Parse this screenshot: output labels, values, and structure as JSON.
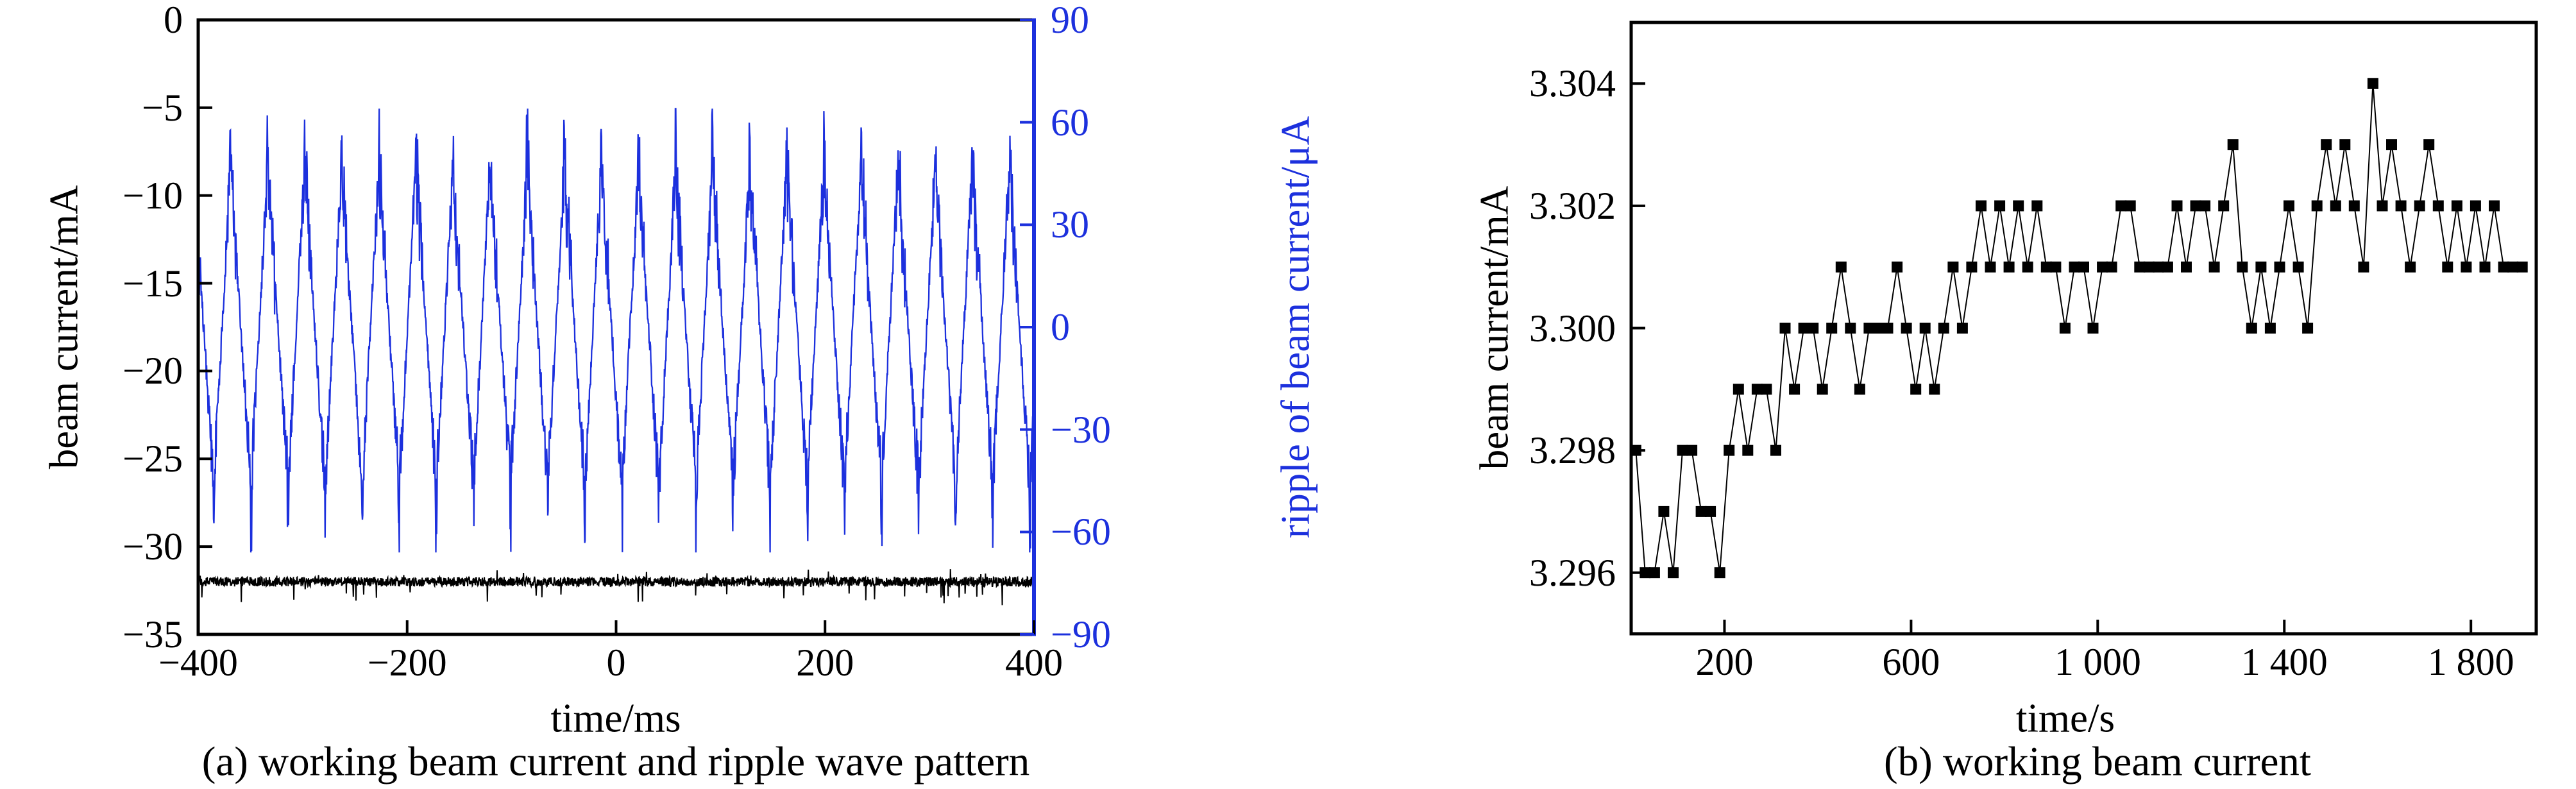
{
  "page": {
    "background": "#ffffff",
    "accent_blue": "#1c30dd",
    "black": "#000000"
  },
  "chart_data": [
    {
      "id": "a",
      "type": "line",
      "caption": "(a) working beam current and ripple wave pattern",
      "xlabel": "time/ms",
      "ylabel_left": "beam current/mA",
      "ylabel_right": "ripple of beam current/μA",
      "xlim": [
        -400,
        400
      ],
      "ylim_left": [
        -35,
        0
      ],
      "ylim_right": [
        -90,
        90
      ],
      "x_ticks": [
        -400,
        -200,
        0,
        200,
        400
      ],
      "x_tick_labels": [
        "−400",
        "−200",
        "0",
        "200",
        "400"
      ],
      "y_ticks_left": [
        0,
        -5,
        -10,
        -15,
        -20,
        -25,
        -30,
        -35
      ],
      "y_tick_labels_left": [
        "0",
        "−5",
        "−10",
        "−15",
        "−20",
        "−25",
        "−30",
        "−35"
      ],
      "y_ticks_right": [
        90,
        60,
        30,
        0,
        -30,
        -60,
        -90
      ],
      "y_tick_labels_right": [
        "90",
        "60",
        "30",
        "0",
        "−30",
        "−60",
        "−90"
      ],
      "grid": false,
      "series": [
        {
          "name": "ripple of beam current",
          "axis": "right",
          "color": "#1c30dd",
          "shape": "periodic noisy triangle wave",
          "period_ms": 35.5,
          "peak_uA": 55,
          "trough_uA": -55,
          "spike_uA": 14,
          "noise_uA": 6
        },
        {
          "name": "working beam current",
          "axis": "left",
          "color": "#000000",
          "shape": "flat noisy band",
          "level_mA": -32,
          "noise_mA": 0.3,
          "down_spike_mA": -1.1
        }
      ]
    },
    {
      "id": "b",
      "type": "scatter",
      "caption": "(b) working beam current",
      "xlabel": "time/s",
      "ylabel": "beam current/mA",
      "xlim": [
        0,
        1940
      ],
      "ylim": [
        3.295,
        3.305
      ],
      "x_ticks": [
        200,
        600,
        1000,
        1400,
        1800
      ],
      "x_tick_labels": [
        "200",
        "600",
        "1 000",
        "1 400",
        "1 800"
      ],
      "y_ticks": [
        3.296,
        3.298,
        3.3,
        3.302,
        3.304
      ],
      "y_tick_labels": [
        "3.296",
        "3.298",
        "3.300",
        "3.302",
        "3.304"
      ],
      "grid": false,
      "marker": "square",
      "color": "#000000",
      "samples": [
        [
          10,
          3.298
        ],
        [
          30,
          3.296
        ],
        [
          50,
          3.296
        ],
        [
          70,
          3.297
        ],
        [
          90,
          3.296
        ],
        [
          110,
          3.298
        ],
        [
          130,
          3.298
        ],
        [
          150,
          3.297
        ],
        [
          170,
          3.297
        ],
        [
          190,
          3.296
        ],
        [
          210,
          3.298
        ],
        [
          230,
          3.299
        ],
        [
          250,
          3.298
        ],
        [
          270,
          3.299
        ],
        [
          290,
          3.299
        ],
        [
          310,
          3.298
        ],
        [
          330,
          3.3
        ],
        [
          350,
          3.299
        ],
        [
          370,
          3.3
        ],
        [
          390,
          3.3
        ],
        [
          410,
          3.299
        ],
        [
          430,
          3.3
        ],
        [
          450,
          3.301
        ],
        [
          470,
          3.3
        ],
        [
          490,
          3.299
        ],
        [
          510,
          3.3
        ],
        [
          530,
          3.3
        ],
        [
          550,
          3.3
        ],
        [
          570,
          3.301
        ],
        [
          590,
          3.3
        ],
        [
          610,
          3.299
        ],
        [
          630,
          3.3
        ],
        [
          650,
          3.299
        ],
        [
          670,
          3.3
        ],
        [
          690,
          3.301
        ],
        [
          710,
          3.3
        ],
        [
          730,
          3.301
        ],
        [
          750,
          3.302
        ],
        [
          770,
          3.301
        ],
        [
          790,
          3.302
        ],
        [
          810,
          3.301
        ],
        [
          830,
          3.302
        ],
        [
          850,
          3.301
        ],
        [
          870,
          3.302
        ],
        [
          890,
          3.301
        ],
        [
          910,
          3.301
        ],
        [
          930,
          3.3
        ],
        [
          950,
          3.301
        ],
        [
          970,
          3.301
        ],
        [
          990,
          3.3
        ],
        [
          1010,
          3.301
        ],
        [
          1030,
          3.301
        ],
        [
          1050,
          3.302
        ],
        [
          1070,
          3.302
        ],
        [
          1090,
          3.301
        ],
        [
          1110,
          3.301
        ],
        [
          1130,
          3.301
        ],
        [
          1150,
          3.301
        ],
        [
          1170,
          3.302
        ],
        [
          1190,
          3.301
        ],
        [
          1210,
          3.302
        ],
        [
          1230,
          3.302
        ],
        [
          1250,
          3.301
        ],
        [
          1270,
          3.302
        ],
        [
          1290,
          3.303
        ],
        [
          1310,
          3.301
        ],
        [
          1330,
          3.3
        ],
        [
          1350,
          3.301
        ],
        [
          1370,
          3.3
        ],
        [
          1390,
          3.301
        ],
        [
          1410,
          3.302
        ],
        [
          1430,
          3.301
        ],
        [
          1450,
          3.3
        ],
        [
          1470,
          3.302
        ],
        [
          1490,
          3.303
        ],
        [
          1510,
          3.302
        ],
        [
          1530,
          3.303
        ],
        [
          1550,
          3.302
        ],
        [
          1570,
          3.301
        ],
        [
          1590,
          3.304
        ],
        [
          1610,
          3.302
        ],
        [
          1630,
          3.303
        ],
        [
          1650,
          3.302
        ],
        [
          1670,
          3.301
        ],
        [
          1690,
          3.302
        ],
        [
          1710,
          3.303
        ],
        [
          1730,
          3.302
        ],
        [
          1750,
          3.301
        ],
        [
          1770,
          3.302
        ],
        [
          1790,
          3.301
        ],
        [
          1810,
          3.302
        ],
        [
          1830,
          3.301
        ],
        [
          1850,
          3.302
        ],
        [
          1870,
          3.301
        ],
        [
          1890,
          3.301
        ],
        [
          1910,
          3.301
        ]
      ]
    }
  ]
}
